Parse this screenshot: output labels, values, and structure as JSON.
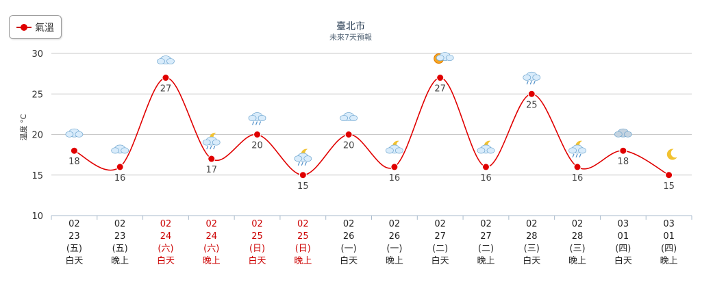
{
  "legend": {
    "label": "氣溫",
    "color": "#e00000"
  },
  "title": "臺北市",
  "subtitle": "未來7天預報",
  "ylabel": "溫度 °C",
  "chart_data": {
    "type": "line",
    "title": "臺北市",
    "subtitle": "未來7天預報",
    "ylabel": "溫度 °C",
    "ylim": [
      10,
      30
    ],
    "yticks": [
      10,
      15,
      20,
      25,
      30
    ],
    "grid": true,
    "legend": "top-left",
    "series": [
      {
        "name": "氣溫",
        "color": "#e00000",
        "values": [
          18,
          16,
          27,
          17,
          20,
          15,
          20,
          16,
          27,
          16,
          25,
          16,
          18,
          15
        ]
      }
    ],
    "categories": [
      {
        "month": "02",
        "day": "23",
        "weekday": "(五)",
        "period": "白天",
        "holiday": false,
        "icon": "cloudy-icon"
      },
      {
        "month": "02",
        "day": "23",
        "weekday": "(五)",
        "period": "晚上",
        "holiday": false,
        "icon": "cloudy-icon"
      },
      {
        "month": "02",
        "day": "24",
        "weekday": "(六)",
        "period": "白天",
        "holiday": true,
        "icon": "cloudy-icon"
      },
      {
        "month": "02",
        "day": "24",
        "weekday": "(六)",
        "period": "晚上",
        "holiday": true,
        "icon": "night-rain-icon"
      },
      {
        "month": "02",
        "day": "25",
        "weekday": "(日)",
        "period": "白天",
        "holiday": true,
        "icon": "rain-icon"
      },
      {
        "month": "02",
        "day": "25",
        "weekday": "(日)",
        "period": "晚上",
        "holiday": true,
        "icon": "night-rain-icon"
      },
      {
        "month": "02",
        "day": "26",
        "weekday": "(一)",
        "period": "白天",
        "holiday": false,
        "icon": "cloudy-icon"
      },
      {
        "month": "02",
        "day": "26",
        "weekday": "(一)",
        "period": "晚上",
        "holiday": false,
        "icon": "night-cloudy-icon"
      },
      {
        "month": "02",
        "day": "27",
        "weekday": "(二)",
        "period": "白天",
        "holiday": false,
        "icon": "sunny-cloudy-icon"
      },
      {
        "month": "02",
        "day": "27",
        "weekday": "(二)",
        "period": "晚上",
        "holiday": false,
        "icon": "night-cloudy-icon"
      },
      {
        "month": "02",
        "day": "28",
        "weekday": "(三)",
        "period": "白天",
        "holiday": false,
        "icon": "rain-icon"
      },
      {
        "month": "02",
        "day": "28",
        "weekday": "(三)",
        "period": "晚上",
        "holiday": false,
        "icon": "night-rain-icon"
      },
      {
        "month": "03",
        "day": "01",
        "weekday": "(四)",
        "period": "白天",
        "holiday": false,
        "icon": "dark-cloudy-icon"
      },
      {
        "month": "03",
        "day": "01",
        "weekday": "(四)",
        "period": "晚上",
        "holiday": false,
        "icon": "moon-cloud-icon"
      }
    ]
  }
}
